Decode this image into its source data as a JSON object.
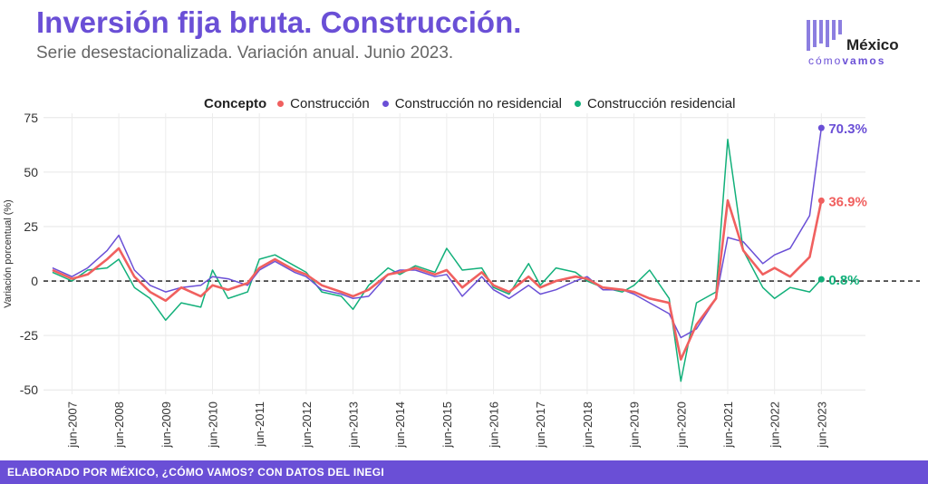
{
  "header": {
    "title": "Inversión fija bruta. Construcción.",
    "subtitle": "Serie desestacionalizada. Variación anual. Junio 2023."
  },
  "logo": {
    "main": "México",
    "sub_light": "cómo",
    "sub_bold": "vamos"
  },
  "footer": {
    "text": "ELABORADO POR MÉXICO, ¿CÓMO VAMOS? CON DATOS DEL INEGI"
  },
  "colors": {
    "accent": "#6a4fd6",
    "construccion": "#f0605f",
    "no_residencial": "#6a4fd6",
    "residencial": "#12b07a"
  },
  "chart_data": {
    "type": "line",
    "ylabel": "Variación porcentual (%)",
    "ylim": [
      -52,
      77
    ],
    "yticks": [
      -50,
      -25,
      0,
      25,
      50,
      75
    ],
    "xticks": [
      "jun-2007",
      "jun-2008",
      "jun-2009",
      "jun-2010",
      "jun-2011",
      "jun-2012",
      "jun-2013",
      "jun-2014",
      "jun-2015",
      "jun-2016",
      "jun-2017",
      "jun-2018",
      "jun-2019",
      "jun-2020",
      "jun-2021",
      "jun-2022",
      "jun-2023"
    ],
    "legend_title": "Concepto",
    "legend_position": "top",
    "grid": true,
    "zero_line": "dashed",
    "series": [
      {
        "name": "Construcción",
        "color": "#f0605f",
        "end_label": "36.9%",
        "points": [
          [
            "2007-01",
            5
          ],
          [
            "2007-06",
            1
          ],
          [
            "2007-10",
            3
          ],
          [
            "2008-03",
            10
          ],
          [
            "2008-06",
            15
          ],
          [
            "2008-10",
            2
          ],
          [
            "2009-02",
            -5
          ],
          [
            "2009-06",
            -9
          ],
          [
            "2009-10",
            -3
          ],
          [
            "2010-03",
            -7
          ],
          [
            "2010-06",
            -2
          ],
          [
            "2010-10",
            -4
          ],
          [
            "2011-03",
            -1
          ],
          [
            "2011-06",
            6
          ],
          [
            "2011-10",
            10
          ],
          [
            "2012-03",
            5
          ],
          [
            "2012-06",
            3
          ],
          [
            "2012-10",
            -2
          ],
          [
            "2013-03",
            -5
          ],
          [
            "2013-06",
            -7
          ],
          [
            "2013-10",
            -4
          ],
          [
            "2014-03",
            3
          ],
          [
            "2014-06",
            4
          ],
          [
            "2014-10",
            6
          ],
          [
            "2015-03",
            3
          ],
          [
            "2015-06",
            5
          ],
          [
            "2015-10",
            -3
          ],
          [
            "2016-03",
            4
          ],
          [
            "2016-06",
            -2
          ],
          [
            "2016-10",
            -5
          ],
          [
            "2017-03",
            2
          ],
          [
            "2017-06",
            -3
          ],
          [
            "2017-10",
            0
          ],
          [
            "2018-03",
            2
          ],
          [
            "2018-06",
            1
          ],
          [
            "2018-10",
            -3
          ],
          [
            "2019-03",
            -4
          ],
          [
            "2019-06",
            -5
          ],
          [
            "2019-10",
            -8
          ],
          [
            "2020-03",
            -10
          ],
          [
            "2020-06",
            -36
          ],
          [
            "2020-10",
            -20
          ],
          [
            "2021-03",
            -8
          ],
          [
            "2021-06",
            37
          ],
          [
            "2021-10",
            14
          ],
          [
            "2022-03",
            3
          ],
          [
            "2022-06",
            6
          ],
          [
            "2022-10",
            2
          ],
          [
            "2023-03",
            11
          ],
          [
            "2023-06",
            36.9
          ]
        ]
      },
      {
        "name": "Construcción no residencial",
        "color": "#6a4fd6",
        "end_label": "70.3%",
        "points": [
          [
            "2007-01",
            6
          ],
          [
            "2007-06",
            2
          ],
          [
            "2007-10",
            6
          ],
          [
            "2008-03",
            14
          ],
          [
            "2008-06",
            21
          ],
          [
            "2008-10",
            5
          ],
          [
            "2009-02",
            -2
          ],
          [
            "2009-06",
            -5
          ],
          [
            "2009-10",
            -3
          ],
          [
            "2010-03",
            -2
          ],
          [
            "2010-06",
            2
          ],
          [
            "2010-10",
            1
          ],
          [
            "2011-03",
            -2
          ],
          [
            "2011-06",
            5
          ],
          [
            "2011-10",
            9
          ],
          [
            "2012-03",
            4
          ],
          [
            "2012-06",
            2
          ],
          [
            "2012-10",
            -4
          ],
          [
            "2013-03",
            -6
          ],
          [
            "2013-06",
            -8
          ],
          [
            "2013-10",
            -7
          ],
          [
            "2014-03",
            3
          ],
          [
            "2014-06",
            5
          ],
          [
            "2014-10",
            5
          ],
          [
            "2015-03",
            2
          ],
          [
            "2015-06",
            3
          ],
          [
            "2015-10",
            -7
          ],
          [
            "2016-03",
            2
          ],
          [
            "2016-06",
            -4
          ],
          [
            "2016-10",
            -8
          ],
          [
            "2017-03",
            -2
          ],
          [
            "2017-06",
            -6
          ],
          [
            "2017-10",
            -4
          ],
          [
            "2018-03",
            0
          ],
          [
            "2018-06",
            2
          ],
          [
            "2018-10",
            -4
          ],
          [
            "2019-03",
            -4
          ],
          [
            "2019-06",
            -6
          ],
          [
            "2019-10",
            -10
          ],
          [
            "2020-03",
            -15
          ],
          [
            "2020-06",
            -26
          ],
          [
            "2020-10",
            -22
          ],
          [
            "2021-03",
            -8
          ],
          [
            "2021-06",
            20
          ],
          [
            "2021-10",
            18
          ],
          [
            "2022-03",
            8
          ],
          [
            "2022-06",
            12
          ],
          [
            "2022-10",
            15
          ],
          [
            "2023-03",
            30
          ],
          [
            "2023-06",
            70.3
          ]
        ]
      },
      {
        "name": "Construcción residencial",
        "color": "#12b07a",
        "end_label": "0.8%",
        "points": [
          [
            "2007-01",
            4
          ],
          [
            "2007-06",
            0
          ],
          [
            "2007-10",
            5
          ],
          [
            "2008-03",
            6
          ],
          [
            "2008-06",
            10
          ],
          [
            "2008-10",
            -3
          ],
          [
            "2009-02",
            -8
          ],
          [
            "2009-06",
            -18
          ],
          [
            "2009-10",
            -10
          ],
          [
            "2010-03",
            -12
          ],
          [
            "2010-06",
            5
          ],
          [
            "2010-10",
            -8
          ],
          [
            "2011-03",
            -5
          ],
          [
            "2011-06",
            10
          ],
          [
            "2011-10",
            12
          ],
          [
            "2012-03",
            7
          ],
          [
            "2012-06",
            4
          ],
          [
            "2012-10",
            -5
          ],
          [
            "2013-03",
            -7
          ],
          [
            "2013-06",
            -13
          ],
          [
            "2013-10",
            -2
          ],
          [
            "2014-03",
            6
          ],
          [
            "2014-06",
            3
          ],
          [
            "2014-10",
            7
          ],
          [
            "2015-03",
            4
          ],
          [
            "2015-06",
            15
          ],
          [
            "2015-10",
            5
          ],
          [
            "2016-03",
            6
          ],
          [
            "2016-06",
            -3
          ],
          [
            "2016-10",
            -6
          ],
          [
            "2017-03",
            8
          ],
          [
            "2017-06",
            -2
          ],
          [
            "2017-10",
            6
          ],
          [
            "2018-03",
            4
          ],
          [
            "2018-06",
            0
          ],
          [
            "2018-10",
            -3
          ],
          [
            "2019-03",
            -5
          ],
          [
            "2019-06",
            -2
          ],
          [
            "2019-10",
            5
          ],
          [
            "2020-03",
            -8
          ],
          [
            "2020-06",
            -46
          ],
          [
            "2020-10",
            -10
          ],
          [
            "2021-03",
            -5
          ],
          [
            "2021-06",
            65
          ],
          [
            "2021-10",
            14
          ],
          [
            "2022-03",
            -3
          ],
          [
            "2022-06",
            -8
          ],
          [
            "2022-10",
            -3
          ],
          [
            "2023-03",
            -5
          ],
          [
            "2023-06",
            0.8
          ]
        ]
      }
    ]
  }
}
